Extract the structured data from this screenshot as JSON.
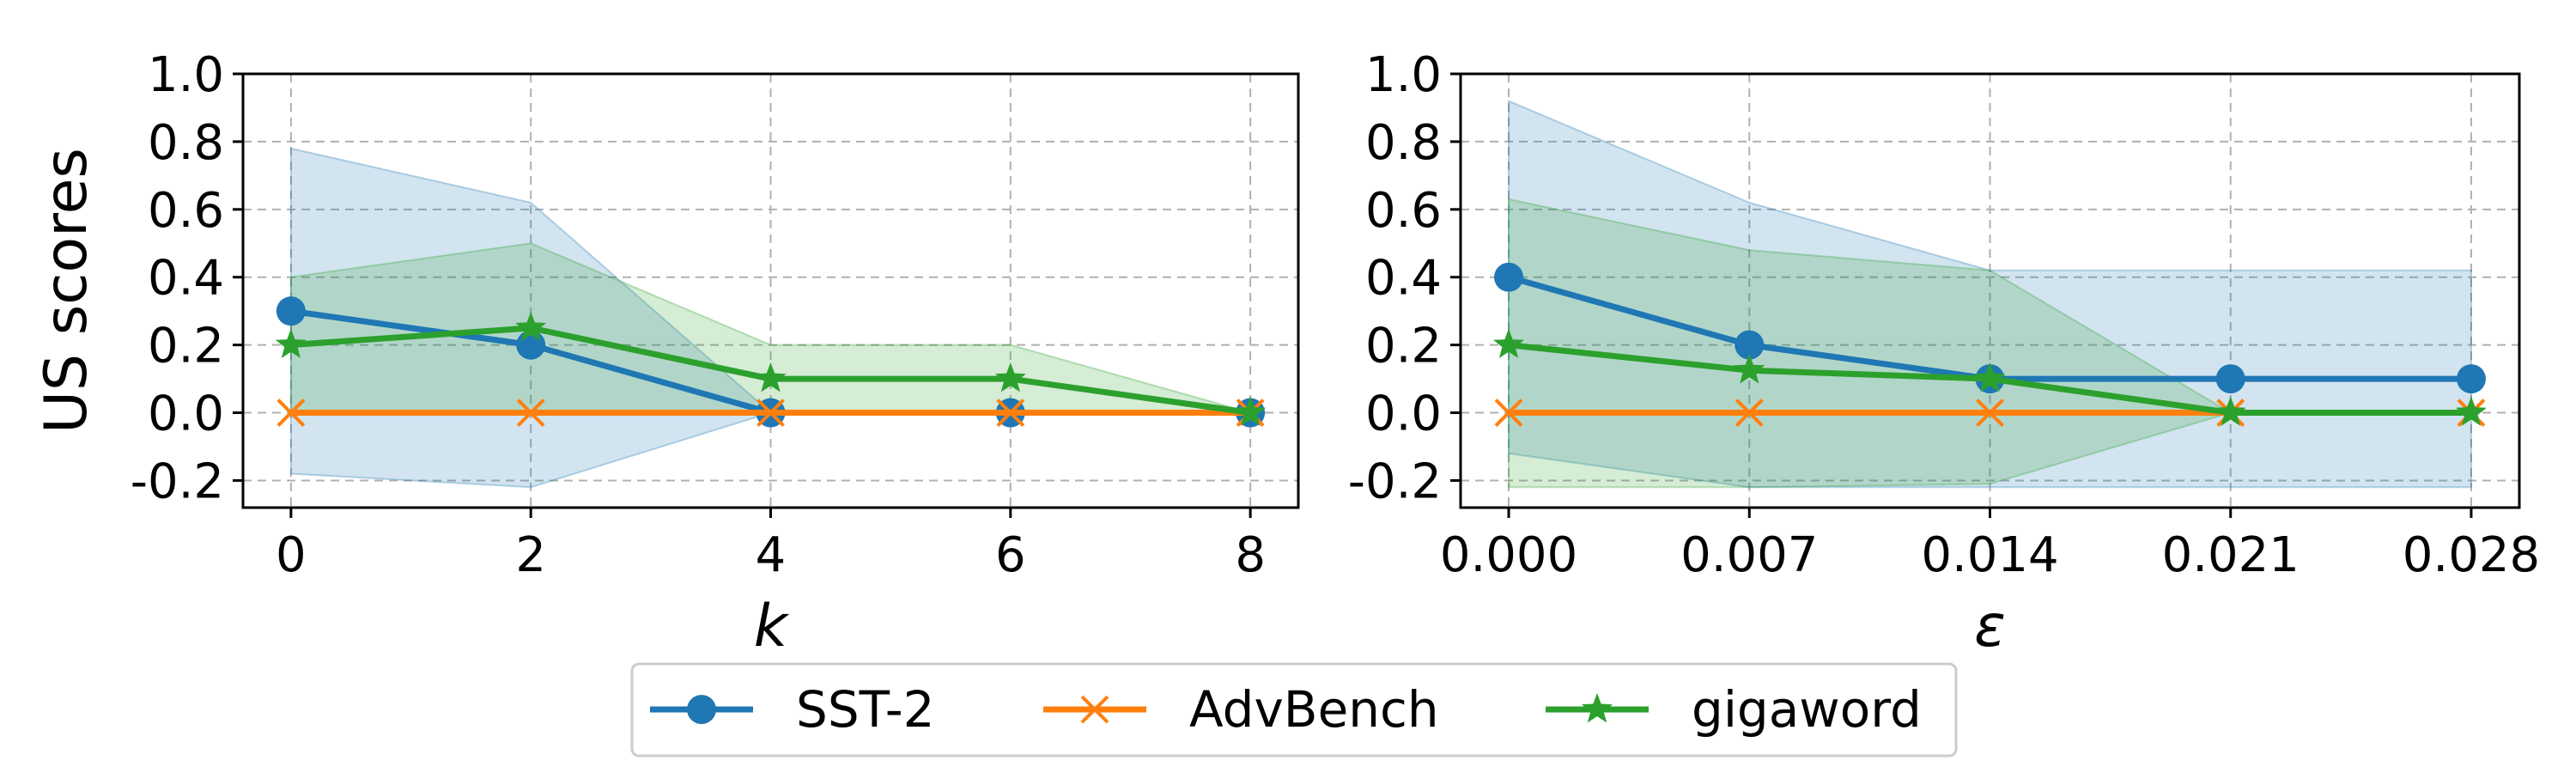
{
  "colors": {
    "SST-2": "#1f77b4",
    "AdvBench": "#ff7f0e",
    "gigaword": "#2ca02c",
    "grid": "#b0b0b0"
  },
  "legend": {
    "placement": "bottom-center",
    "entries": [
      {
        "name": "SST-2",
        "marker": "circle"
      },
      {
        "name": "AdvBench",
        "marker": "x"
      },
      {
        "name": "gigaword",
        "marker": "star"
      }
    ]
  },
  "chart_data": [
    {
      "type": "line",
      "xlabel": "k",
      "ylabel": "US scores",
      "x": [
        0,
        2,
        4,
        6,
        8
      ],
      "x_ticks": [
        "0",
        "2",
        "4",
        "6",
        "8"
      ],
      "xlim": [
        -0.4,
        8.4
      ],
      "ylim": [
        -0.28,
        1.0
      ],
      "y_ticks": [
        "1.0",
        "0.8",
        "0.6",
        "0.4",
        "0.2",
        "0.0",
        "-0.2"
      ],
      "y_tick_values": [
        1.0,
        0.8,
        0.6,
        0.4,
        0.2,
        0.0,
        -0.2
      ],
      "grid": true,
      "series": [
        {
          "name": "SST-2",
          "values": [
            0.3,
            0.2,
            0.0,
            0.0,
            0.0
          ],
          "band_upper": [
            0.78,
            0.62,
            0.0,
            0.0,
            0.0
          ],
          "band_lower": [
            -0.18,
            -0.22,
            0.0,
            0.0,
            0.0
          ]
        },
        {
          "name": "AdvBench",
          "values": [
            0.0,
            0.0,
            0.0,
            0.0,
            0.0
          ],
          "band_upper": [
            0.0,
            0.0,
            0.0,
            0.0,
            0.0
          ],
          "band_lower": [
            0.0,
            0.0,
            0.0,
            0.0,
            0.0
          ]
        },
        {
          "name": "gigaword",
          "values": [
            0.2,
            0.25,
            0.1,
            0.1,
            0.0
          ],
          "band_upper": [
            0.4,
            0.5,
            0.2,
            0.2,
            0.0
          ],
          "band_lower": [
            0.0,
            0.0,
            0.0,
            0.0,
            0.0
          ]
        }
      ]
    },
    {
      "type": "line",
      "xlabel": "ε",
      "ylabel": "",
      "x": [
        0.0,
        0.007,
        0.014,
        0.021,
        0.028
      ],
      "x_ticks": [
        "0.000",
        "0.007",
        "0.014",
        "0.021",
        "0.028"
      ],
      "xlim": [
        -0.0014,
        0.0294
      ],
      "ylim": [
        -0.28,
        1.0
      ],
      "y_ticks": [
        "1.0",
        "0.8",
        "0.6",
        "0.4",
        "0.2",
        "0.0",
        "-0.2"
      ],
      "y_tick_values": [
        1.0,
        0.8,
        0.6,
        0.4,
        0.2,
        0.0,
        -0.2
      ],
      "grid": true,
      "series": [
        {
          "name": "SST-2",
          "values": [
            0.4,
            0.2,
            0.1,
            0.1,
            0.1
          ],
          "band_upper": [
            0.92,
            0.62,
            0.42,
            0.42,
            0.42
          ],
          "band_lower": [
            -0.12,
            -0.22,
            -0.22,
            -0.22,
            -0.22
          ]
        },
        {
          "name": "AdvBench",
          "values": [
            0.0,
            0.0,
            0.0,
            0.0,
            0.0
          ],
          "band_upper": [
            0.0,
            0.0,
            0.0,
            0.0,
            0.0
          ],
          "band_lower": [
            0.0,
            0.0,
            0.0,
            0.0,
            0.0
          ]
        },
        {
          "name": "gigaword",
          "values": [
            0.2,
            0.125,
            0.1,
            0.0,
            0.0
          ],
          "band_upper": [
            0.63,
            0.48,
            0.42,
            0.0,
            0.0
          ],
          "band_lower": [
            -0.22,
            -0.22,
            -0.21,
            0.0,
            0.0
          ]
        }
      ]
    }
  ]
}
